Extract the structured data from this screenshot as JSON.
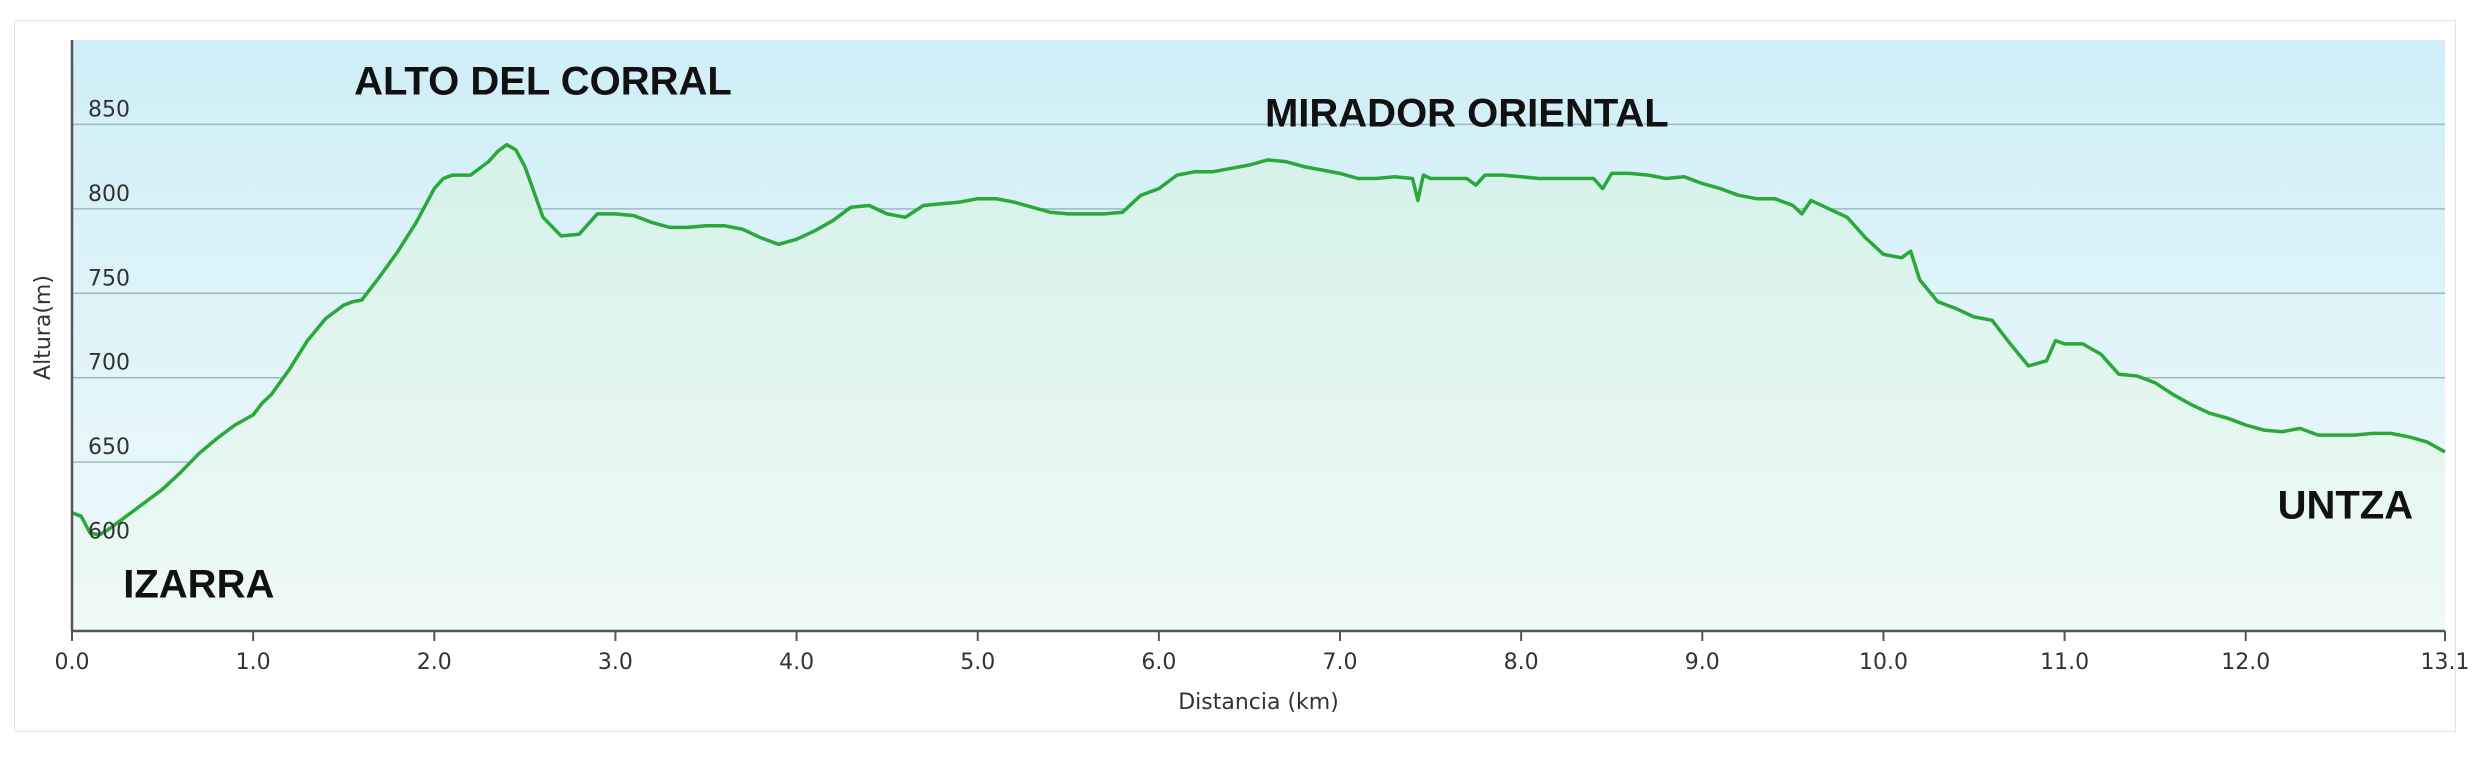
{
  "chart_data": {
    "type": "area",
    "xlabel": "Distancia  (km)",
    "ylabel": "Altura(m)",
    "xlim": [
      0,
      13.1
    ],
    "ylim": [
      550,
      900
    ],
    "x_ticks": [
      0.0,
      1.0,
      2.0,
      3.0,
      4.0,
      5.0,
      6.0,
      7.0,
      8.0,
      9.0,
      10.0,
      11.0,
      12.0,
      13.1
    ],
    "x_tick_labels": [
      "0.0",
      "1.0",
      "2.0",
      "3.0",
      "4.0",
      "5.0",
      "6.0",
      "7.0",
      "8.0",
      "9.0",
      "10.0",
      "11.0",
      "12.0",
      "13.1"
    ],
    "y_ticks": [
      600,
      650,
      700,
      750,
      800,
      850
    ],
    "y_tick_labels": [
      "600",
      "650",
      "700",
      "750",
      "800",
      "850"
    ],
    "grid": true,
    "colors": {
      "line": "#2aa83a",
      "fill_top": "#d6f2ea",
      "fill_bottom": "#eefaf4",
      "bg_top": "#cfeef8",
      "bg_bottom": "#f0fbfa",
      "grid": "#9fb8c0",
      "axis": "#555555"
    },
    "series": [
      {
        "x": [
          0.0,
          0.05,
          0.1,
          0.15,
          0.2,
          0.3,
          0.4,
          0.5,
          0.6,
          0.7,
          0.8,
          0.9,
          1.0,
          1.05,
          1.1,
          1.2,
          1.3,
          1.4,
          1.5,
          1.55,
          1.6,
          1.7,
          1.8,
          1.9,
          2.0,
          2.05,
          2.1,
          2.2,
          2.3,
          2.35,
          2.4,
          2.45,
          2.5,
          2.6,
          2.7,
          2.8,
          2.9,
          3.0,
          3.1,
          3.2,
          3.3,
          3.4,
          3.5,
          3.6,
          3.7,
          3.8,
          3.9,
          4.0,
          4.1,
          4.2,
          4.3,
          4.4,
          4.5,
          4.6,
          4.7,
          4.8,
          4.9,
          5.0,
          5.1,
          5.2,
          5.3,
          5.4,
          5.5,
          5.6,
          5.7,
          5.8,
          5.9,
          6.0,
          6.1,
          6.2,
          6.3,
          6.4,
          6.5,
          6.6,
          6.7,
          6.8,
          6.9,
          7.0,
          7.1,
          7.2,
          7.3,
          7.4,
          7.43,
          7.46,
          7.5,
          7.6,
          7.7,
          7.75,
          7.8,
          7.9,
          8.0,
          8.1,
          8.2,
          8.3,
          8.4,
          8.45,
          8.5,
          8.6,
          8.7,
          8.8,
          8.9,
          9.0,
          9.1,
          9.2,
          9.3,
          9.4,
          9.5,
          9.55,
          9.6,
          9.7,
          9.8,
          9.9,
          10.0,
          10.1,
          10.15,
          10.2,
          10.3,
          10.4,
          10.5,
          10.6,
          10.7,
          10.8,
          10.9,
          10.95,
          11.0,
          11.1,
          11.2,
          11.3,
          11.4,
          11.5,
          11.6,
          11.7,
          11.8,
          11.9,
          12.0,
          12.1,
          12.2,
          12.3,
          12.4,
          12.5,
          12.6,
          12.7,
          12.8,
          12.9,
          13.0,
          13.1
        ],
        "y": [
          620,
          618,
          608,
          607,
          610,
          618,
          626,
          634,
          644,
          655,
          664,
          672,
          678,
          685,
          690,
          705,
          722,
          735,
          743,
          745,
          746,
          760,
          775,
          792,
          812,
          818,
          820,
          820,
          828,
          834,
          838,
          835,
          825,
          795,
          784,
          785,
          797,
          797,
          796,
          792,
          789,
          789,
          790,
          790,
          788,
          783,
          779,
          782,
          787,
          793,
          801,
          802,
          797,
          795,
          802,
          803,
          804,
          806,
          806,
          804,
          801,
          798,
          797,
          797,
          797,
          798,
          808,
          812,
          820,
          822,
          822,
          824,
          826,
          829,
          828,
          825,
          823,
          821,
          818,
          818,
          819,
          818,
          805,
          820,
          818,
          818,
          818,
          814,
          820,
          820,
          819,
          818,
          818,
          818,
          818,
          812,
          821,
          821,
          820,
          818,
          819,
          815,
          812,
          808,
          806,
          806,
          802,
          797,
          805,
          800,
          795,
          783,
          773,
          771,
          775,
          758,
          745,
          741,
          736,
          734,
          720,
          707,
          710,
          722,
          720,
          720,
          714,
          702,
          701,
          697,
          690,
          684,
          679,
          676,
          672,
          669,
          668,
          670,
          666,
          666,
          666,
          667,
          667,
          665,
          662,
          656
        ]
      }
    ],
    "annotations": [
      {
        "text": "ALTO DEL CORRAL",
        "x": 2.6,
        "y": 876
      },
      {
        "text": "MIRADOR ORIENTAL",
        "x": 7.7,
        "y": 857
      },
      {
        "text": "IZARRA",
        "x": 0.7,
        "y": 578
      },
      {
        "text": "UNTZA",
        "x": 12.55,
        "y": 625
      }
    ]
  }
}
